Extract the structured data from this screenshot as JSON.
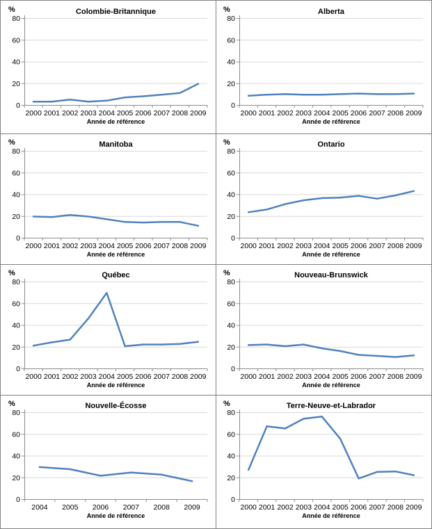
{
  "colors": {
    "line": "#4F81BD",
    "axis": "#8C8C8C",
    "grid": "#D9D9D9",
    "border": "#7F7F7F",
    "text": "#000000"
  },
  "chart_data": [
    {
      "type": "line",
      "title": "Colombie-Britannique",
      "ylabel": "%",
      "xlabel": "Année de référence",
      "ylim": [
        0,
        80
      ],
      "yticks": [
        0,
        20,
        40,
        60,
        80
      ],
      "grid": true,
      "x": [
        "2000",
        "2001",
        "2002",
        "2003",
        "2004",
        "2005",
        "2006",
        "2007",
        "2008",
        "2009"
      ],
      "values": [
        3,
        3,
        5,
        3,
        4,
        7,
        8,
        9.5,
        11,
        19.5
      ]
    },
    {
      "type": "line",
      "title": "Alberta",
      "ylabel": "%",
      "xlabel": "Année de référence",
      "ylim": [
        0,
        80
      ],
      "yticks": [
        0,
        20,
        40,
        60,
        80
      ],
      "grid": true,
      "x": [
        "2000",
        "2001",
        "2002",
        "2003",
        "2004",
        "2005",
        "2006",
        "2007",
        "2008",
        "2009"
      ],
      "values": [
        8.5,
        9.5,
        10,
        9.5,
        9.5,
        10,
        10.5,
        10,
        10,
        10.5
      ]
    },
    {
      "type": "line",
      "title": "Manitoba",
      "ylabel": "%",
      "xlabel": "Année de référence",
      "ylim": [
        0,
        80
      ],
      "yticks": [
        0,
        20,
        40,
        60,
        80
      ],
      "grid": true,
      "x": [
        "2000",
        "2001",
        "2002",
        "2003",
        "2004",
        "2005",
        "2006",
        "2007",
        "2008",
        "2009"
      ],
      "values": [
        19.5,
        19,
        21,
        19.5,
        17,
        14.5,
        14,
        14.5,
        14.5,
        11
      ]
    },
    {
      "type": "line",
      "title": "Ontario",
      "ylabel": "%",
      "xlabel": "Année de référence",
      "ylim": [
        0,
        80
      ],
      "yticks": [
        0,
        20,
        40,
        60,
        80
      ],
      "grid": true,
      "x": [
        "2000",
        "2001",
        "2002",
        "2003",
        "2004",
        "2005",
        "2006",
        "2007",
        "2008",
        "2009"
      ],
      "values": [
        23.5,
        26,
        31,
        34.5,
        36.5,
        37,
        38.5,
        36,
        39,
        43
      ]
    },
    {
      "type": "line",
      "title": "Québec",
      "ylabel": "%",
      "xlabel": "Année de référence",
      "ylim": [
        0,
        80
      ],
      "yticks": [
        0,
        20,
        40,
        60,
        80
      ],
      "grid": true,
      "x": [
        "2000",
        "2001",
        "2002",
        "2003",
        "2004",
        "2005",
        "2006",
        "2007",
        "2008",
        "2009"
      ],
      "values": [
        21,
        24,
        26.5,
        46,
        69.5,
        20.5,
        22,
        22,
        22.5,
        24.5
      ]
    },
    {
      "type": "line",
      "title": "Nouveau-Brunswick",
      "ylabel": "%",
      "xlabel": "Année de référence",
      "ylim": [
        0,
        80
      ],
      "yticks": [
        0,
        20,
        40,
        60,
        80
      ],
      "grid": true,
      "x": [
        "2000",
        "2001",
        "2002",
        "2003",
        "2004",
        "2005",
        "2006",
        "2007",
        "2008",
        "2009"
      ],
      "values": [
        21.5,
        22,
        20.5,
        22,
        18.5,
        16,
        12.5,
        11.5,
        10.5,
        12
      ]
    },
    {
      "type": "line",
      "title": "Nouvelle-Écosse",
      "ylabel": "%",
      "xlabel": "Année de référence",
      "ylim": [
        0,
        80
      ],
      "yticks": [
        0,
        20,
        40,
        60,
        80
      ],
      "grid": true,
      "x": [
        "2004",
        "2005",
        "2006",
        "2007",
        "2008",
        "2009"
      ],
      "values": [
        29.5,
        27.5,
        21.5,
        24.5,
        22.5,
        16.5
      ]
    },
    {
      "type": "line",
      "title": "Terre-Neuve-et-Labrador",
      "ylabel": "%",
      "xlabel": "Année de référence",
      "ylim": [
        0,
        80
      ],
      "yticks": [
        0,
        20,
        40,
        60,
        80
      ],
      "grid": true,
      "x": [
        "2000",
        "2001",
        "2002",
        "2003",
        "2004",
        "2005",
        "2006",
        "2007",
        "2008",
        "2009"
      ],
      "values": [
        27,
        67,
        65,
        74,
        76,
        55.5,
        19,
        25,
        25.5,
        22
      ]
    }
  ]
}
